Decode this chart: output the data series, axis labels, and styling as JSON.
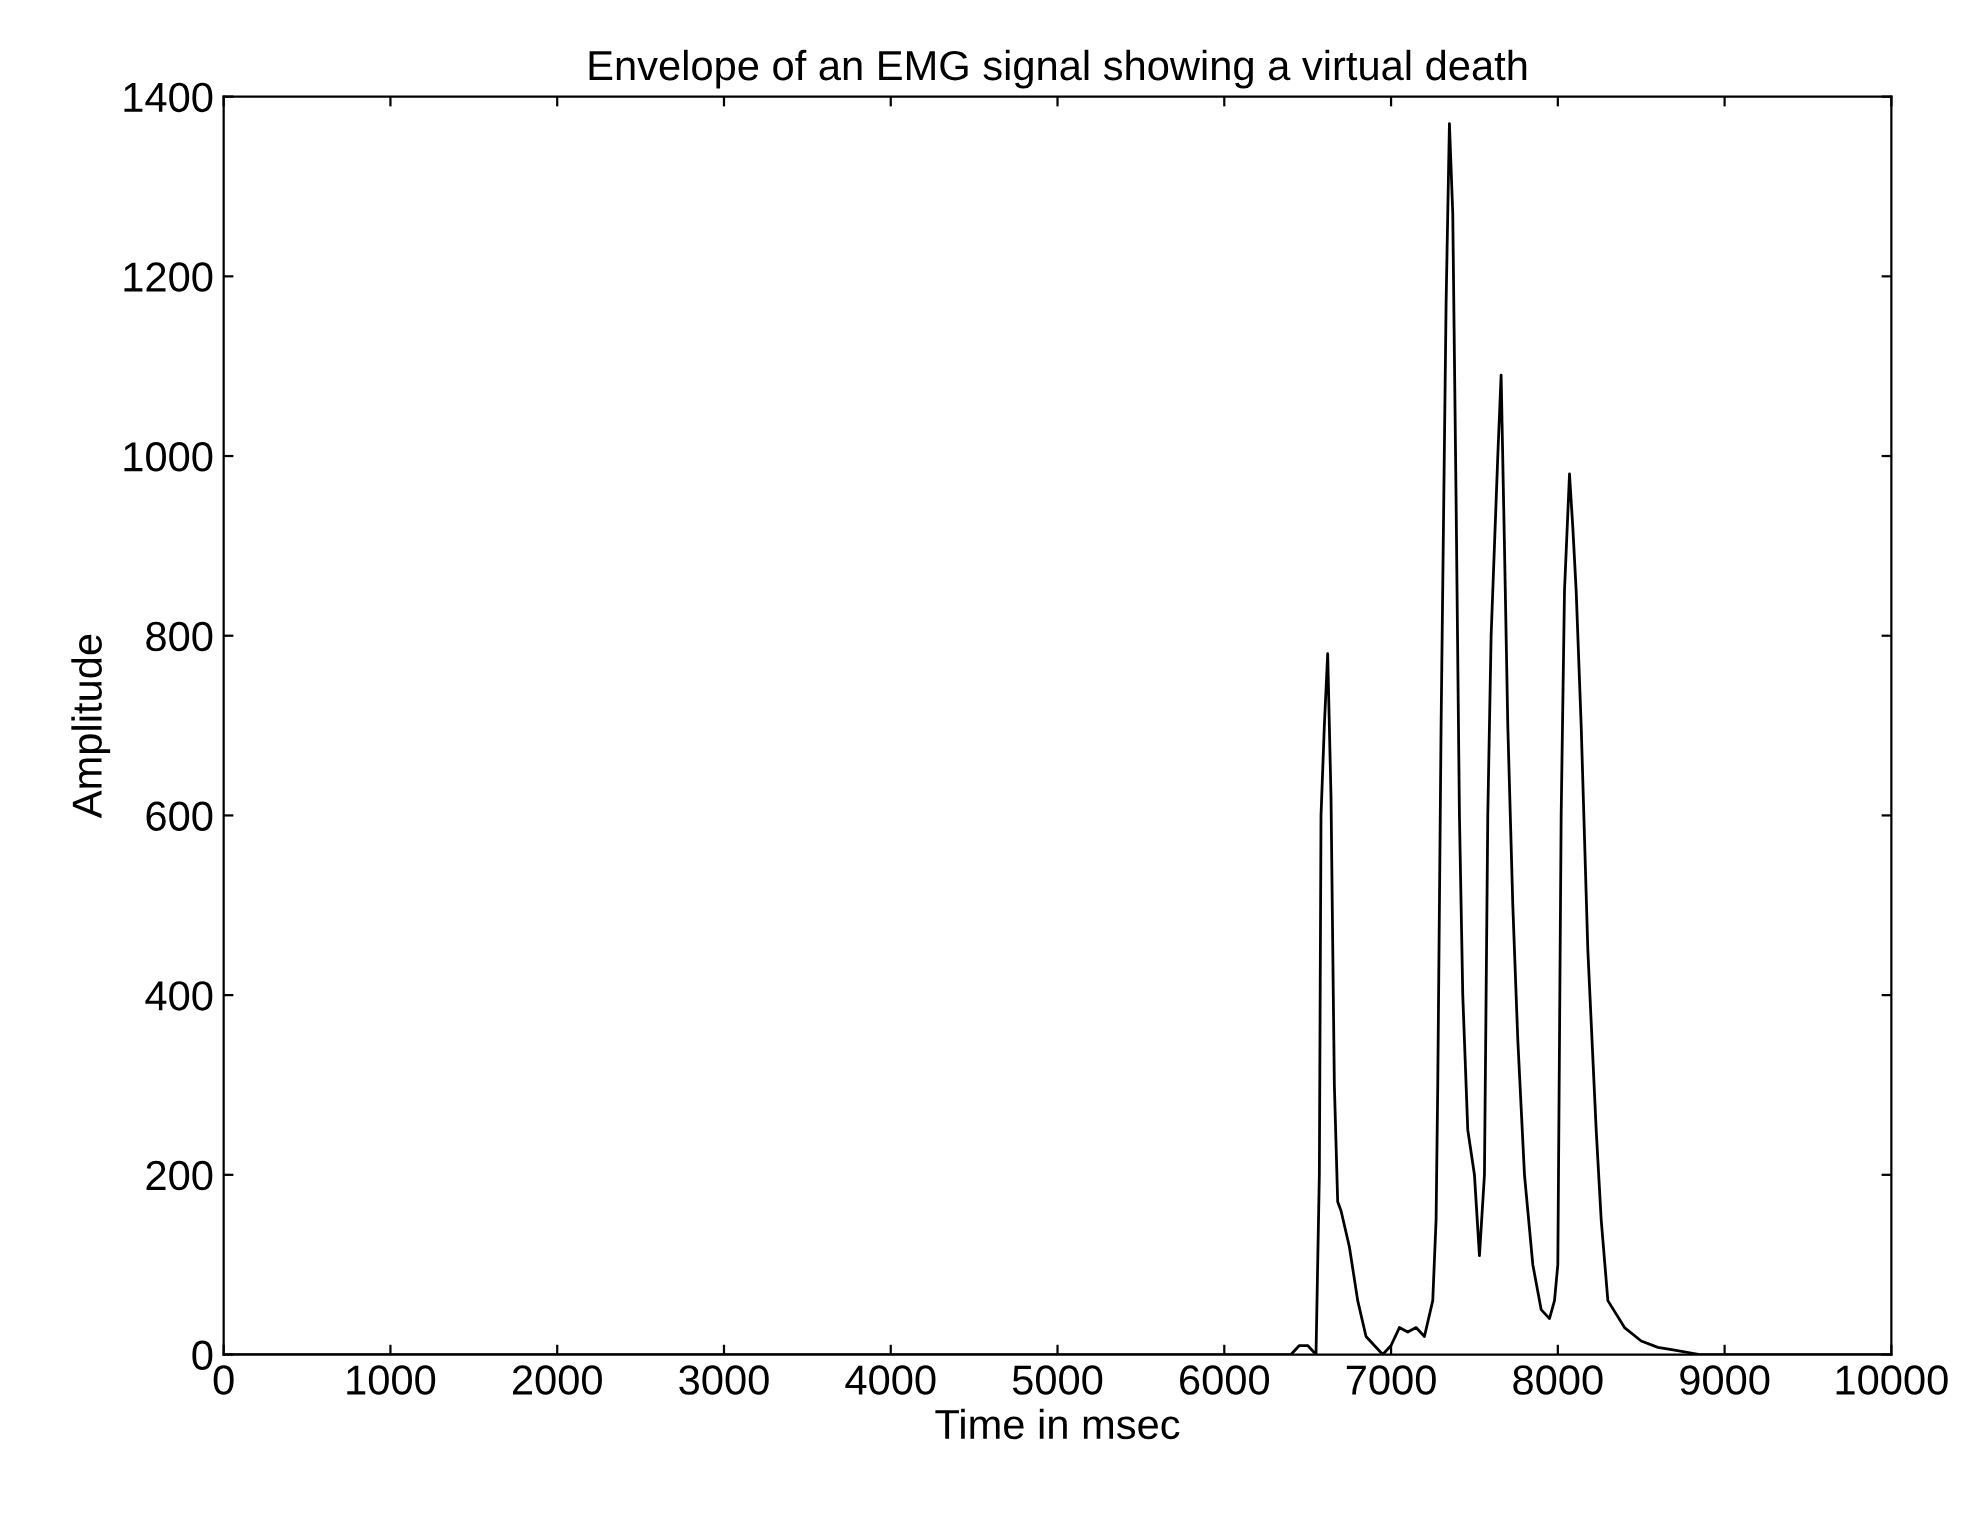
{
  "chart_data": {
    "type": "line",
    "title": "Envelope of an EMG signal showing a virtual death",
    "xlabel": "Time in msec",
    "ylabel": "Amplitude",
    "x": [
      0,
      6400,
      6450,
      6500,
      6550,
      6570,
      6580,
      6600,
      6620,
      6640,
      6660,
      6680,
      6700,
      6750,
      6800,
      6850,
      6900,
      6950,
      7000,
      7050,
      7100,
      7150,
      7200,
      7250,
      7270,
      7280,
      7300,
      7330,
      7350,
      7370,
      7390,
      7410,
      7430,
      7460,
      7500,
      7530,
      7560,
      7580,
      7600,
      7620,
      7640,
      7660,
      7680,
      7700,
      7730,
      7760,
      7800,
      7850,
      7900,
      7950,
      7980,
      8000,
      8020,
      8040,
      8070,
      8090,
      8110,
      8140,
      8180,
      8230,
      8260,
      8300,
      8400,
      8500,
      8600,
      8700,
      8850,
      10000
    ],
    "series": [
      {
        "color": "#000000",
        "values": [
          0,
          0,
          10,
          10,
          0,
          200,
          600,
          700,
          780,
          620,
          300,
          170,
          160,
          120,
          60,
          20,
          10,
          0,
          10,
          30,
          25,
          30,
          20,
          60,
          150,
          300,
          700,
          1170,
          1370,
          1270,
          950,
          600,
          400,
          250,
          200,
          110,
          200,
          600,
          800,
          900,
          1000,
          1090,
          900,
          700,
          500,
          350,
          200,
          100,
          50,
          40,
          60,
          100,
          600,
          850,
          980,
          920,
          850,
          700,
          450,
          250,
          150,
          60,
          30,
          15,
          8,
          5,
          0,
          0
        ]
      }
    ],
    "xlim": [
      0,
      10000
    ],
    "xticks": [
      0,
      1000,
      2000,
      3000,
      4000,
      5000,
      6000,
      7000,
      8000,
      9000,
      10000
    ],
    "ylim": [
      0,
      1400
    ],
    "yticks": [
      0,
      200,
      400,
      600,
      800,
      1000,
      1200,
      1400
    ],
    "grid": false,
    "legend": false
  }
}
